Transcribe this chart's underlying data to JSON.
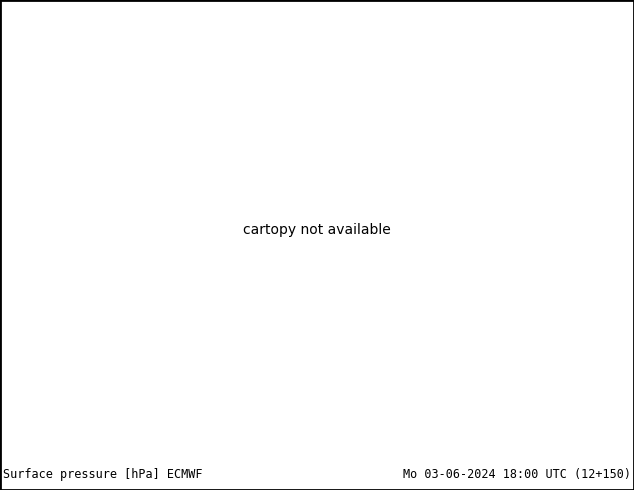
{
  "title_left": "Surface pressure [hPa] ECMWF",
  "title_right": "Mo 03-06-2024 18:00 UTC (12+150)",
  "figsize": [
    6.34,
    4.9
  ],
  "dpi": 100,
  "font_size_bottom": 8.5,
  "land_color": "#aacf8a",
  "ocean_color": "#d8e8f0",
  "lake_color": "#b0cce0",
  "border_color": "#808080",
  "state_color": "#909090",
  "bottom_bar_color": "#c8c8c8",
  "lon_min": -135,
  "lon_max": -55,
  "lat_min": 18,
  "lat_max": 57
}
